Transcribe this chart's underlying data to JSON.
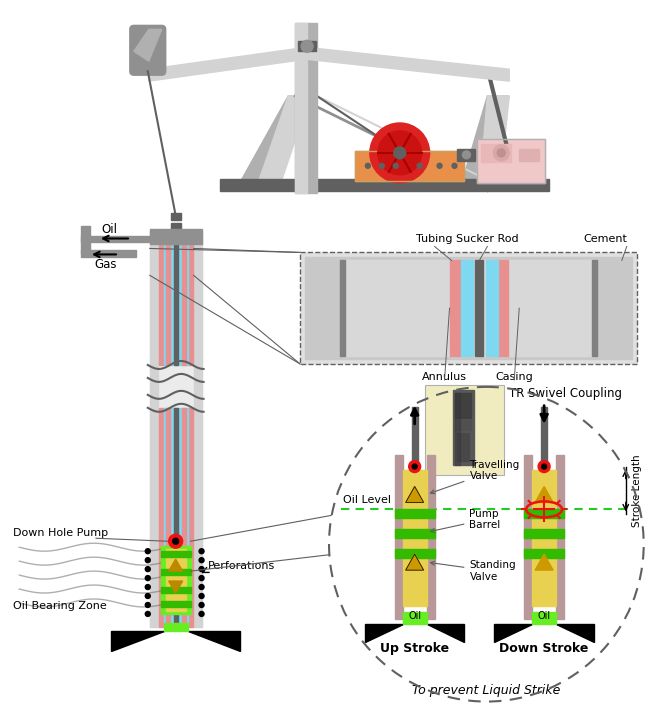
{
  "figsize": [
    6.67,
    7.16
  ],
  "dpi": 100,
  "labels": {
    "oil": "Oil",
    "gas": "Gas",
    "tubing": "Tubing",
    "sucker_rod": "Sucker Rod",
    "cement": "Cement",
    "annulus": "Annulus",
    "casing": "Casing",
    "down_hole_pump": "Down Hole Pump",
    "oil_bearing_zone": "Oil Bearing Zone",
    "perforations": "Perforations",
    "tr_swivel": "TR Swivel Coupling",
    "travelling_valve": "Travelling\nValve",
    "pump_barrel": "Pump\nBarrel",
    "standing_valve": "Standing\nValve",
    "oil_level": "Oil Level",
    "up_stroke": "Up Stroke",
    "down_stroke": "Down Stroke",
    "stroke_length": "Stroke Length",
    "prevent": "To prevent Liquid Strike",
    "oil_label": "Oil"
  },
  "colors": {
    "white": "#ffffff",
    "light_gray": "#d3d3d3",
    "med_gray": "#b0b0b0",
    "gray": "#909090",
    "dark_gray": "#606060",
    "steel": "#808080",
    "cyan": "#7dd8f0",
    "salmon": "#e89090",
    "red": "#ee1111",
    "orange": "#e8904a",
    "light_orange": "#f4b870",
    "pink_light": "#f0c8c8",
    "green_bright": "#66ee22",
    "green_dark": "#33bb00",
    "green_line": "#22cc22",
    "yellow_pump": "#e8d050",
    "mauve": "#b89898",
    "black": "#000000",
    "cream": "#f8f4d8",
    "tan": "#c8a060"
  }
}
